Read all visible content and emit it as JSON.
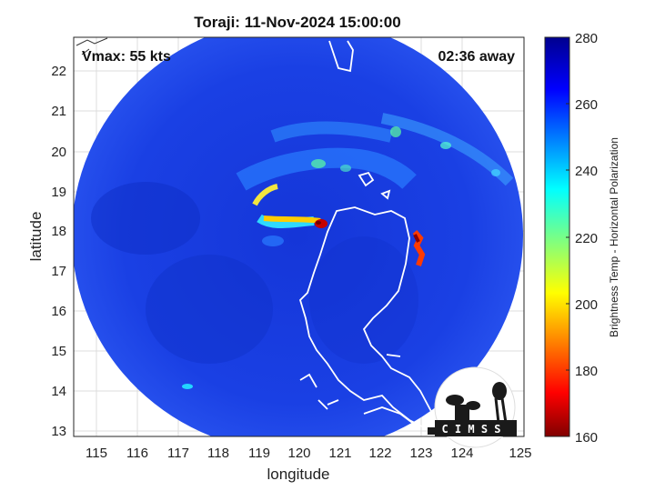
{
  "title": "Toraji: 11-Nov-2024 15:00:00",
  "vmax_label": "Vmax: 55 kts",
  "time_away_label": "02:36 away",
  "x_axis": {
    "label": "longitude",
    "ticks": [
      "115",
      "116",
      "117",
      "118",
      "119",
      "120",
      "121",
      "122",
      "123",
      "124",
      "125"
    ]
  },
  "y_axis": {
    "label": "latitude",
    "ticks": [
      "22",
      "21",
      "20",
      "19",
      "18",
      "17",
      "16",
      "15",
      "14",
      "13"
    ]
  },
  "colorbar": {
    "label": "Brightness Temp - Horizontal Polarization",
    "ticks": [
      "280",
      "260",
      "240",
      "220",
      "200",
      "180",
      "160"
    ],
    "min": 160,
    "max": 280,
    "colormap": "jet"
  },
  "logo_text": "C I M S S",
  "colors": {
    "background_scan": "#1a3fe0",
    "coastline": "#ffffff",
    "hot": "#b00000"
  }
}
